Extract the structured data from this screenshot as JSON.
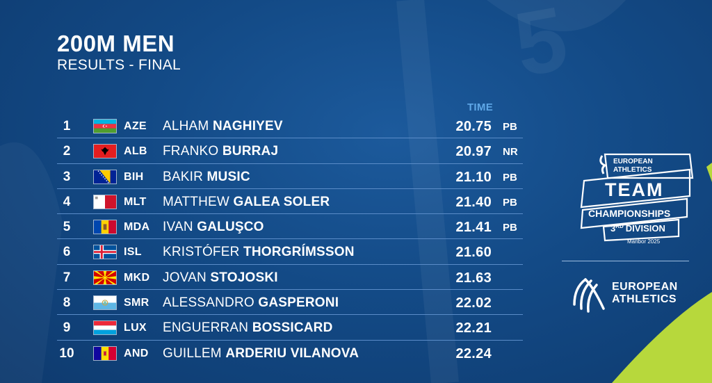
{
  "header": {
    "title": "200M MEN",
    "subtitle": "RESULTS - FINAL",
    "time_label": "TIME"
  },
  "results": [
    {
      "rank": "1",
      "flag": "aze-flag-icon",
      "code": "AZE",
      "first": "ALHAM",
      "last": "NAGHIYEV",
      "time": "20.75",
      "note": "PB"
    },
    {
      "rank": "2",
      "flag": "alb-flag-icon",
      "code": "ALB",
      "first": "FRANKO",
      "last": "BURRAJ",
      "time": "20.97",
      "note": "NR"
    },
    {
      "rank": "3",
      "flag": "bih-flag-icon",
      "code": "BIH",
      "first": "BAKIR",
      "last": "MUSIC",
      "time": "21.10",
      "note": "PB"
    },
    {
      "rank": "4",
      "flag": "mlt-flag-icon",
      "code": "MLT",
      "first": "MATTHEW",
      "last": "GALEA SOLER",
      "time": "21.40",
      "note": "PB"
    },
    {
      "rank": "5",
      "flag": "mda-flag-icon",
      "code": "MDA",
      "first": "IVAN",
      "last": "GALUŞCO",
      "time": "21.41",
      "note": "PB"
    },
    {
      "rank": "6",
      "flag": "isl-flag-icon",
      "code": "ISL",
      "first": "KRISTÓFER",
      "last": "THORGRÍMSSON",
      "time": "21.60",
      "note": ""
    },
    {
      "rank": "7",
      "flag": "mkd-flag-icon",
      "code": "MKD",
      "first": "JOVAN",
      "last": "STOJOSKI",
      "time": "21.63",
      "note": ""
    },
    {
      "rank": "8",
      "flag": "smr-flag-icon",
      "code": "SMR",
      "first": "ALESSANDRO",
      "last": "GASPERONI",
      "time": "22.02",
      "note": ""
    },
    {
      "rank": "9",
      "flag": "lux-flag-icon",
      "code": "LUX",
      "first": "ENGUERRAN",
      "last": "BOSSICARD",
      "time": "22.21",
      "note": ""
    },
    {
      "rank": "10",
      "flag": "and-flag-icon",
      "code": "AND",
      "first": "GUILLEM",
      "last": "ARDERIU VILANOVA",
      "time": "22.24",
      "note": ""
    }
  ],
  "team_logo": {
    "line1": "EUROPEAN",
    "line2": "ATHLETICS",
    "team": "TEAM",
    "championships": "CHAMPIONSHIPS",
    "division_num": "3",
    "division_sup": "RD",
    "division": "DIVISION",
    "location": "Maribor 2025"
  },
  "ea_logo": {
    "line1": "EUROPEAN",
    "line2": "ATHLETICS"
  },
  "colors": {
    "background": "#134a86",
    "time_header": "#5fa8e8",
    "row_divider": "#5a8cc8",
    "accent_green": "#b7d83c"
  }
}
